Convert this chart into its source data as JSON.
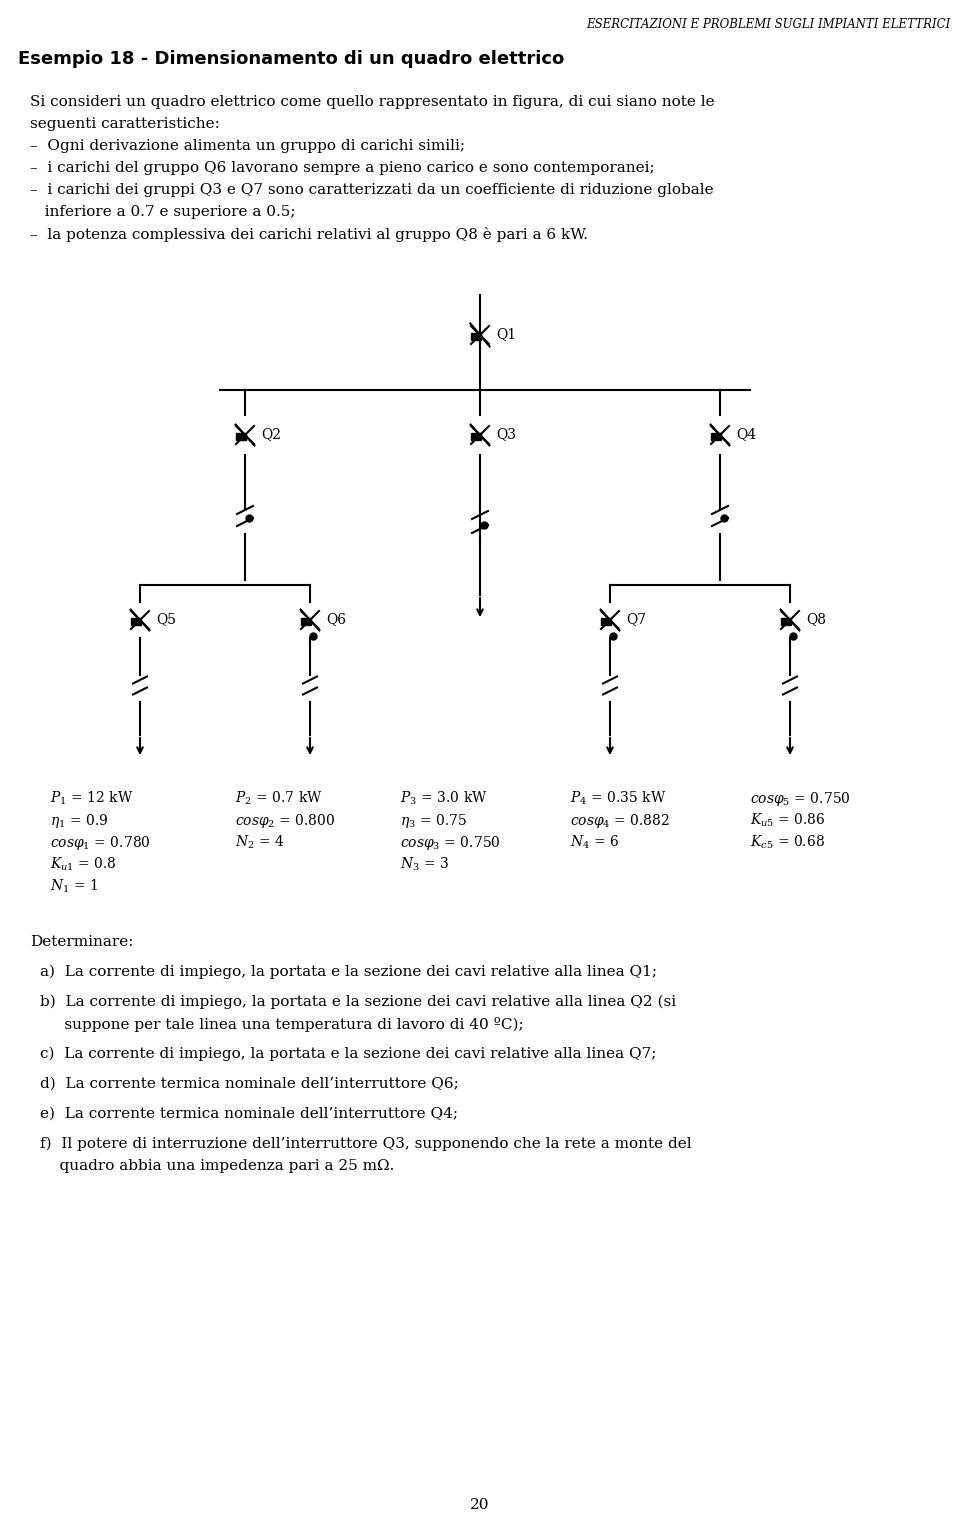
{
  "header": "ESERCITAZIONI E PROBLEMI SUGLI IMPIANTI ELETTRICI",
  "title": "Esempio 18 - Dimensionamento di un quadro elettrico",
  "body_text": [
    "Si consideri un quadro elettrico come quello rappresentato in figura, di cui siano note le seguenti caratteristiche:",
    "- Ogni derivazione alimenta un gruppo di carichi simili;",
    "- i carichi del gruppo Q6 lavorano sempre a pieno carico e sono contemporanei;",
    "- i carichi dei gruppi Q3 e Q7 sono caratterizzati da un coefficiente di riduzione globale\n  inferiore a 0.7 e superiore a 0.5;",
    "- la potenza complessiva dei carichi relativi al gruppo Q8 è pari a 6 kW."
  ],
  "load_data": [
    {
      "label": "P₁ = 12 kW",
      "sub": [
        "η₁ = 0.9",
        "cosφ₁ = 0.780",
        "Kᵤ₁ = 0.8",
        "N₁ = 1"
      ]
    },
    {
      "label": "P₂ = 0.7 kW",
      "sub": [
        "cosφ₂ = 0.800",
        "N₂ = 4",
        "",
        ""
      ]
    },
    {
      "label": "P₃ = 3.0 kW",
      "sub": [
        "η₃ = 0.75",
        "cosφ₃ = 0.750",
        "N₃ = 3",
        ""
      ]
    },
    {
      "label": "P₄ = 0.35 kW",
      "sub": [
        "cosφ₄ = 0.882",
        "N₄ = 6",
        "",
        ""
      ]
    },
    {
      "label": "cosφ₅ = 0.750",
      "sub": [
        "Kᵤ₅ = 0.86",
        "Kᶜ₅ = 0.68",
        "",
        ""
      ]
    }
  ],
  "determine_text": "Determinare:",
  "items": [
    "a)  La corrente di impiego, la portata e la sezione dei cavi relative alla linea Q1;",
    "b)  La corrente di impiego, la portata e la sezione dei cavi relative alla linea Q2 (si\n     suppone per tale linea una temperatura di lavoro di 40 ºC);",
    "c)  La corrente di impiego, la portata e la sezione dei cavi relative alla linea Q7;",
    "d)  La corrente termica nominale dell’interruttore Q6;",
    "e)  La corrente termica nominale dell’interruttore Q4;",
    "f)   Il potere di interruzione dell’interruttore Q3, supponendo che la rete a monte del\n     quadro abbia una impedenza pari a 25 mΩ."
  ],
  "page_number": "20",
  "bg_color": "#ffffff",
  "text_color": "#000000"
}
